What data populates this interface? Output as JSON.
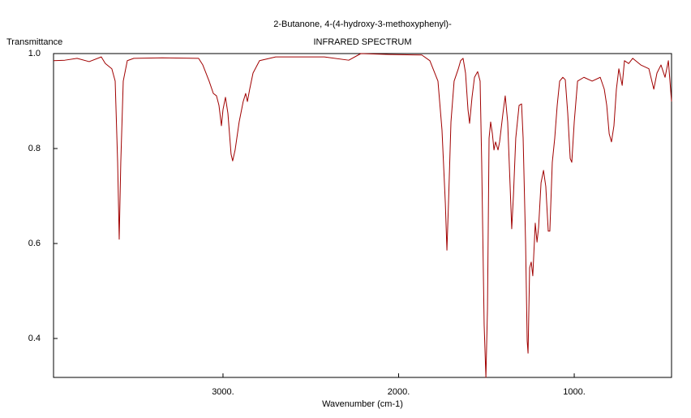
{
  "chart_data": {
    "type": "line",
    "title": "2-Butanone, 4-(4-hydroxy-3-methoxyphenyl)-",
    "subtitle": "INFRARED SPECTRUM",
    "y_label": "Transmittance",
    "x_label": "Wavenumber (cm-1)",
    "color": "#a00000",
    "xlim": [
      3965,
      446
    ],
    "ylim": [
      0.318,
      1.0
    ],
    "xticks": [
      {
        "value": 3000,
        "label": "3000."
      },
      {
        "value": 2000,
        "label": "2000."
      },
      {
        "value": 1000,
        "label": "1000."
      }
    ],
    "yticks": [
      {
        "value": 1.0,
        "label": "1.0"
      },
      0.8,
      0.6,
      0.4
    ],
    "x": [
      3965,
      3901,
      3831,
      3762,
      3693,
      3670,
      3633,
      3614,
      3600,
      3591,
      3582,
      3568,
      3545,
      3508,
      3346,
      3139,
      3115,
      3079,
      3055,
      3037,
      3023,
      3009,
      3000,
      2986,
      2972,
      2954,
      2945,
      2931,
      2908,
      2885,
      2871,
      2861,
      2848,
      2829,
      2792,
      2700,
      2423,
      2284,
      2215,
      2053,
      1868,
      1822,
      1776,
      1753,
      1734,
      1725,
      1716,
      1702,
      1684,
      1660,
      1647,
      1633,
      1619,
      1605,
      1596,
      1582,
      1568,
      1550,
      1536,
      1527,
      1513,
      1503,
      1494,
      1485,
      1476,
      1466,
      1457,
      1448,
      1434,
      1425,
      1406,
      1393,
      1379,
      1365,
      1356,
      1346,
      1333,
      1314,
      1300,
      1291,
      1277,
      1268,
      1263,
      1254,
      1245,
      1236,
      1222,
      1212,
      1203,
      1189,
      1175,
      1162,
      1148,
      1139,
      1125,
      1111,
      1097,
      1083,
      1065,
      1051,
      1037,
      1023,
      1014,
      1000,
      981,
      945,
      898,
      852,
      829,
      815,
      801,
      788,
      774,
      760,
      746,
      727,
      714,
      690,
      667,
      621,
      575,
      547,
      529,
      506,
      483,
      464,
      446
    ],
    "values": [
      0.985,
      0.986,
      0.99,
      0.983,
      0.993,
      0.979,
      0.968,
      0.942,
      0.771,
      0.609,
      0.771,
      0.942,
      0.985,
      0.99,
      0.991,
      0.99,
      0.976,
      0.942,
      0.916,
      0.911,
      0.891,
      0.848,
      0.882,
      0.908,
      0.874,
      0.788,
      0.774,
      0.797,
      0.856,
      0.899,
      0.916,
      0.899,
      0.925,
      0.959,
      0.985,
      0.993,
      0.993,
      0.986,
      1.0,
      0.998,
      0.997,
      0.985,
      0.942,
      0.839,
      0.685,
      0.586,
      0.685,
      0.856,
      0.942,
      0.968,
      0.985,
      0.99,
      0.959,
      0.882,
      0.853,
      0.908,
      0.95,
      0.962,
      0.942,
      0.771,
      0.429,
      0.318,
      0.463,
      0.822,
      0.856,
      0.831,
      0.797,
      0.814,
      0.797,
      0.814,
      0.874,
      0.911,
      0.856,
      0.72,
      0.631,
      0.703,
      0.822,
      0.891,
      0.894,
      0.822,
      0.6,
      0.395,
      0.369,
      0.549,
      0.561,
      0.532,
      0.643,
      0.603,
      0.634,
      0.728,
      0.754,
      0.72,
      0.626,
      0.626,
      0.771,
      0.822,
      0.891,
      0.942,
      0.95,
      0.945,
      0.874,
      0.779,
      0.771,
      0.856,
      0.942,
      0.95,
      0.942,
      0.95,
      0.925,
      0.891,
      0.831,
      0.814,
      0.848,
      0.925,
      0.968,
      0.933,
      0.985,
      0.979,
      0.99,
      0.976,
      0.968,
      0.925,
      0.959,
      0.976,
      0.95,
      0.985,
      0.899
    ]
  }
}
